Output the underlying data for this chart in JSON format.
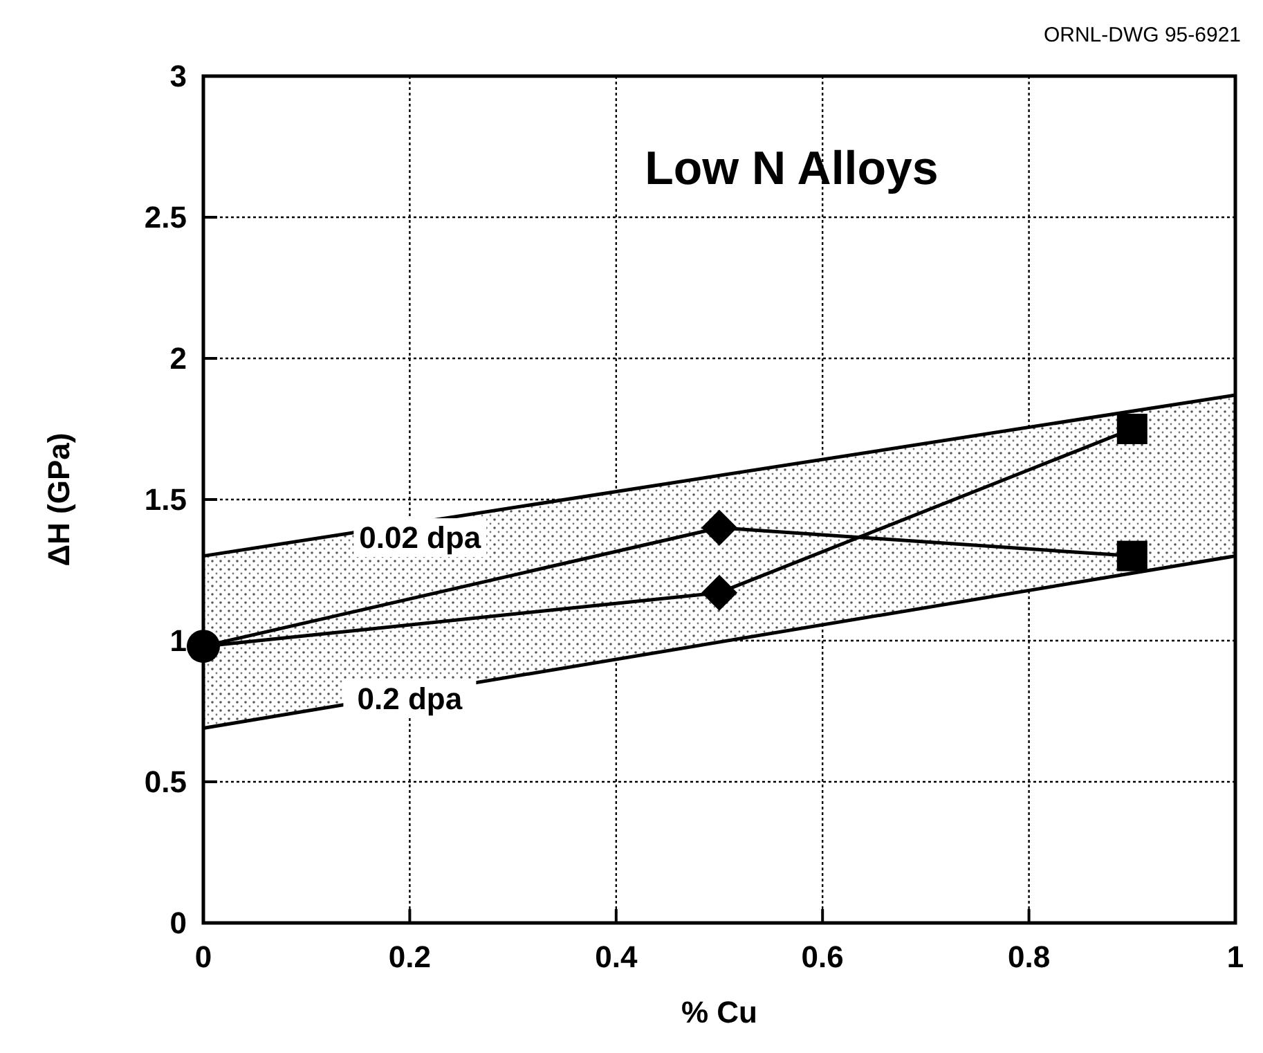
{
  "chart_data": {
    "type": "line",
    "title": "Low N Alloys",
    "xlabel": "% Cu",
    "ylabel": "ΔH  (GPa)",
    "xlim": [
      0,
      1
    ],
    "ylim": [
      0,
      3
    ],
    "xticks": [
      0,
      0.2,
      0.4,
      0.6,
      0.8,
      1
    ],
    "yticks": [
      0,
      0.5,
      1,
      1.5,
      2,
      2.5,
      3
    ],
    "grid": true,
    "series": [
      {
        "color": "#000000",
        "x": [
          0,
          1
        ],
        "values": [
          1.3,
          1.87
        ],
        "lower": [
          0.69,
          1.3
        ],
        "upper": [
          1.3,
          1.87
        ],
        "marker": "none"
      },
      {
        "color": "#000000",
        "x": [
          0,
          1
        ],
        "values": [
          0.69,
          1.3
        ],
        "marker": "none"
      },
      {
        "color": "#000000",
        "x": [
          0,
          0.5,
          0.9
        ],
        "values": [
          0.98,
          1.4,
          1.3
        ],
        "marker": "none"
      },
      {
        "color": "#000000",
        "x": [
          0,
          0.5,
          0.9
        ],
        "values": [
          0.98,
          1.17,
          1.75
        ],
        "marker": "none"
      },
      {
        "type": "scatter",
        "color": "#000000",
        "x": [
          0
        ],
        "values": [
          0.98
        ],
        "marker": "circle"
      },
      {
        "type": "scatter",
        "color": "#000000",
        "x": [
          0.5,
          0.5
        ],
        "values": [
          1.4,
          1.17
        ],
        "marker": "diamond"
      },
      {
        "type": "scatter",
        "color": "#000000",
        "x": [
          0.9,
          0.9
        ],
        "values": [
          1.3,
          1.75
        ],
        "marker": "square"
      }
    ],
    "annotations": [
      "0.02  dpa",
      "0.2  dpa",
      "ORNL-DWG 95-6921"
    ]
  }
}
